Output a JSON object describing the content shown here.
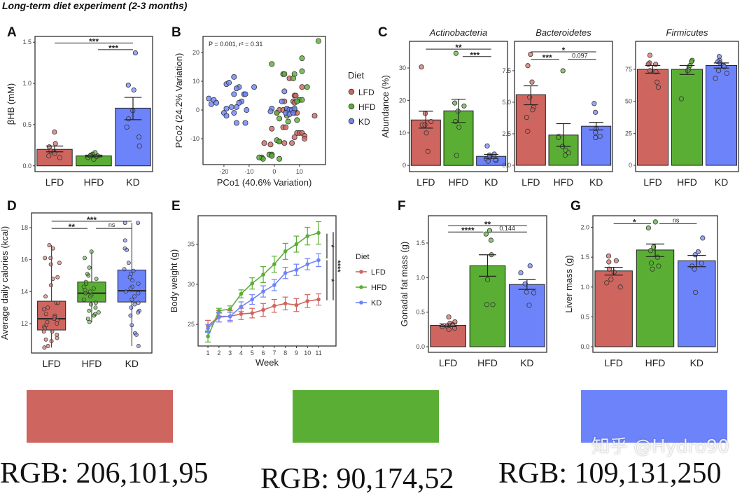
{
  "title": "Long-term diet experiment (2-3 months)",
  "colors": {
    "LFD": "#CE655F",
    "HFD": "#5AAE34",
    "KD": "#6D83FA"
  },
  "chart_data": [
    {
      "panel": "A",
      "type": "bar",
      "ylabel": "βHB (mM)",
      "xlabel": "",
      "categories": [
        "LFD",
        "HFD",
        "KD"
      ],
      "values": [
        0.2,
        0.12,
        0.7
      ],
      "sem_low": [
        0.17,
        0.11,
        0.56
      ],
      "sem_high": [
        0.24,
        0.13,
        0.83
      ],
      "points": [
        [
          0.41,
          0.27,
          0.23,
          0.18,
          0.17,
          0.15,
          0.12,
          0.1
        ],
        [
          0.16,
          0.14,
          0.13,
          0.12,
          0.11,
          0.1,
          0.08,
          0.12
        ],
        [
          1.37,
          0.98,
          0.92,
          0.67,
          0.57,
          0.47,
          0.35,
          0.24
        ]
      ],
      "ylim": [
        -0.07,
        1.57
      ],
      "yticks": [
        "0.0",
        "0.5",
        "1.0",
        "1.5"
      ],
      "significance": [
        {
          "from": 0,
          "to": 2,
          "y": 1.49,
          "label": "***"
        },
        {
          "from": 1,
          "to": 2,
          "y": 1.41,
          "label": "***"
        }
      ]
    },
    {
      "panel": "B",
      "type": "scatter",
      "annotation": "P = 0.001, r² = 0.31",
      "xlabel": "PCo1 (40.6% Variation)",
      "ylabel": "PCo2 (24.2% Variation)",
      "xlim": [
        -28.3,
        20.3
      ],
      "ylim": [
        -19.0,
        25.6
      ],
      "xticks": [
        "-20",
        "-10",
        "0",
        "10"
      ],
      "yticks": [
        "-10",
        "0",
        "10",
        "20"
      ],
      "legend_title": "Diet",
      "legend_position": "right",
      "series": [
        {
          "name": "LFD",
          "points": [
            [
              6,
              11
            ],
            [
              11,
              8
            ],
            [
              8,
              5
            ],
            [
              8.5,
              5
            ],
            [
              4,
              3
            ],
            [
              7.5,
              3
            ],
            [
              8,
              2.5
            ],
            [
              2,
              0
            ],
            [
              3.5,
              0
            ],
            [
              5,
              0
            ],
            [
              1,
              -1
            ],
            [
              8,
              -1
            ],
            [
              9,
              -1
            ],
            [
              16,
              -2
            ],
            [
              -1,
              -6.5
            ],
            [
              3.5,
              -6
            ],
            [
              4.5,
              -6
            ],
            [
              9,
              -8
            ],
            [
              10,
              -8
            ],
            [
              11,
              -8
            ],
            [
              12,
              -9
            ],
            [
              8,
              -9.5
            ],
            [
              12,
              -10
            ],
            [
              -4,
              -11.5
            ],
            [
              -1.5,
              -12
            ],
            [
              2,
              -11
            ],
            [
              4,
              -11.5
            ],
            [
              7,
              -11.5
            ]
          ]
        },
        {
          "name": "HFD",
          "points": [
            [
              17.5,
              24
            ],
            [
              11,
              18
            ],
            [
              -1,
              16
            ],
            [
              11,
              13.5
            ],
            [
              3.5,
              12.5
            ],
            [
              4,
              12.5
            ],
            [
              8,
              12.5
            ],
            [
              7.5,
              11
            ],
            [
              13,
              8
            ],
            [
              10,
              3.5
            ],
            [
              11,
              3.5
            ],
            [
              9,
              3
            ],
            [
              8,
              0
            ],
            [
              1,
              -1
            ],
            [
              2,
              -3
            ],
            [
              5,
              -2
            ],
            [
              5.5,
              -4
            ],
            [
              9,
              -3.5
            ],
            [
              1,
              -10.5
            ],
            [
              2,
              -11
            ],
            [
              -5,
              -16.5
            ],
            [
              -4.5,
              -17
            ],
            [
              -6,
              -16.5
            ],
            [
              -2,
              -15.5
            ],
            [
              -1,
              -15.5
            ],
            [
              -1,
              -16
            ],
            [
              2,
              -17
            ]
          ]
        },
        {
          "name": "KD",
          "points": [
            [
              -26,
              4
            ],
            [
              -24,
              3.5
            ],
            [
              -23,
              2.5
            ],
            [
              -25,
              2
            ],
            [
              -19,
              9
            ],
            [
              -18,
              9.5
            ],
            [
              -16,
              11.5
            ],
            [
              -14,
              8
            ],
            [
              -15,
              7.5
            ],
            [
              -8,
              8
            ],
            [
              -12,
              5.5
            ],
            [
              -11.5,
              5.5
            ],
            [
              -16,
              5.5
            ],
            [
              -13,
              3
            ],
            [
              -17,
              1
            ],
            [
              -19,
              0.5
            ],
            [
              -20,
              -1
            ],
            [
              -19,
              -2
            ],
            [
              -15,
              1
            ],
            [
              -14,
              2.5
            ],
            [
              -16,
              -1
            ],
            [
              -11,
              0
            ],
            [
              -15,
              -4.5
            ],
            [
              -11.5,
              -4.5
            ],
            [
              -1,
              0.5
            ],
            [
              -1.5,
              -0.5
            ],
            [
              4,
              6.5
            ],
            [
              3,
              3
            ],
            [
              5,
              0.5
            ],
            [
              6,
              0
            ],
            [
              7,
              0
            ],
            [
              4.5,
              -1
            ],
            [
              6,
              -1.5
            ],
            [
              8,
              0.5
            ],
            [
              7.5,
              -1
            ]
          ]
        }
      ]
    },
    {
      "panel": "C",
      "type": "bar",
      "title": "Actinobacteria",
      "ylabel": "Abundance (%)",
      "categories": [
        "LFD",
        "HFD",
        "KD"
      ],
      "values": [
        14.0,
        16.8,
        2.8
      ],
      "sem_low": [
        11.5,
        13.2,
        2.2
      ],
      "sem_high": [
        16.7,
        20.4,
        3.4
      ],
      "points": [
        [
          30.3,
          16,
          13.5,
          12.5,
          12.5,
          10,
          4.3
        ],
        [
          34.5,
          19.2,
          18.3,
          16.7,
          13.5,
          11.8,
          3.1
        ],
        [
          6,
          3.5,
          3.2,
          2.5,
          2,
          1.5,
          1.3,
          1.8
        ]
      ],
      "ylim": [
        -1.9,
        38.2
      ],
      "yticks": [
        "0",
        "10",
        "20",
        "30"
      ],
      "significance": [
        {
          "from": 0,
          "to": 2,
          "y": 35.8,
          "label": "**"
        },
        {
          "from": 1,
          "to": 2,
          "y": 33.5,
          "label": "***"
        }
      ]
    },
    {
      "panel": "",
      "type": "bar",
      "title": "Bacteroidetes",
      "ylabel": "",
      "categories": [
        "LFD",
        "HFD",
        "KD"
      ],
      "values": [
        5.6,
        2.4,
        3.1
      ],
      "sem_low": [
        4.8,
        1.5,
        2.8
      ],
      "sem_high": [
        6.3,
        3.3,
        3.4
      ],
      "points": [
        [
          8.8,
          7.9,
          6.6,
          5.4,
          4.6,
          4.4,
          3.8,
          2.7
        ],
        [
          7.5,
          2.3,
          2.2,
          1.5,
          1.2,
          0.8,
          1.0
        ],
        [
          4.9,
          4.2,
          2.9,
          2.6,
          2.3,
          2.2,
          2.2
        ]
      ],
      "ylim": [
        -0.5,
        9.83
      ],
      "yticks": [
        "0.0",
        "2.5",
        "5.0",
        "7.5"
      ],
      "significance": [
        {
          "from": 0,
          "to": 2,
          "y": 9.0,
          "label": "*"
        },
        {
          "from": 0,
          "to": 1,
          "y": 8.4,
          "label": "***"
        },
        {
          "from": 1,
          "to": 2,
          "y": 8.4,
          "label": "0.097"
        }
      ]
    },
    {
      "panel": "",
      "type": "bar",
      "title": "Firmicutes",
      "ylabel": "",
      "categories": [
        "LFD",
        "HFD",
        "KD"
      ],
      "values": [
        75,
        75,
        78
      ],
      "sem_low": [
        72,
        71,
        76
      ],
      "sem_high": [
        78,
        78,
        80
      ],
      "points": [
        [
          86,
          80,
          79,
          79,
          74,
          73,
          65,
          61
        ],
        [
          82,
          81,
          78,
          75,
          74,
          52
        ],
        [
          85,
          82,
          81,
          80,
          78,
          77,
          74,
          72,
          68
        ]
      ],
      "ylim": [
        -4.9,
        96.9
      ],
      "yticks": [
        "0",
        "25",
        "50",
        "75"
      ],
      "significance": []
    },
    {
      "panel": "D",
      "type": "box",
      "ylabel": "Average daily calories (kcal)",
      "categories": [
        "LFD",
        "HFD",
        "KD"
      ],
      "q1": [
        11.6,
        13.35,
        13.35
      ],
      "median": [
        12.3,
        13.9,
        14.05
      ],
      "q3": [
        13.4,
        14.6,
        15.35
      ],
      "whisker_low": [
        10.5,
        12.1,
        10.6
      ],
      "whisker_high": [
        16.9,
        16.5,
        18.3
      ],
      "points": [
        [
          16.9,
          16.7,
          16.1,
          16.1,
          15.8,
          15.7,
          14.9,
          14.8,
          14.4,
          13.7,
          13.3,
          13.3,
          13.0,
          12.9,
          12.6,
          12.5,
          12.4,
          12.3,
          12.2,
          12.1,
          12.0,
          11.9,
          11.8,
          11.7,
          11.5,
          11.5,
          11.3,
          11.1,
          11.0,
          10.9,
          10.5,
          10.6
        ],
        [
          16.5,
          16.1,
          15.5,
          15.1,
          15.0,
          14.8,
          14.6,
          14.5,
          14.3,
          14.2,
          14.1,
          14.0,
          13.9,
          13.8,
          13.7,
          13.5,
          13.3,
          13.2,
          13.0,
          12.8,
          12.7,
          12.6,
          12.5,
          12.3,
          12.1
        ],
        [
          18.3,
          18.3,
          17.2,
          16.7,
          16.6,
          15.8,
          15.4,
          15.3,
          15.1,
          14.9,
          14.7,
          14.5,
          14.3,
          14.2,
          14.0,
          13.9,
          13.7,
          13.5,
          13.3,
          13.2,
          13.0,
          12.8,
          12.7,
          12.5,
          11.9,
          11.4,
          11.3,
          10.6
        ]
      ],
      "ylim": [
        10.16,
        18.92
      ],
      "yticks": [
        "12",
        "14",
        "16",
        "18"
      ],
      "significance": [
        {
          "from": 0,
          "to": 2,
          "y": 18.4,
          "label": "***"
        },
        {
          "from": 0,
          "to": 1,
          "y": 17.95,
          "label": "**"
        },
        {
          "from": 1,
          "to": 2,
          "y": 17.95,
          "label": "ns"
        }
      ]
    },
    {
      "panel": "E",
      "type": "line",
      "xlabel": "Week",
      "ylabel": "Body weight (g)",
      "x": [
        1,
        2,
        3,
        4,
        5,
        6,
        7,
        8,
        9,
        10,
        11
      ],
      "xlim": [
        0.11,
        12.58
      ],
      "ylim": [
        22.3,
        38.54
      ],
      "yticks": [
        "25",
        "30",
        "35"
      ],
      "legend_title": "Diet",
      "legend_position": "right",
      "series": [
        {
          "name": "LFD",
          "values": [
            24.8,
            26.0,
            26.0,
            26.3,
            26.4,
            26.8,
            27.3,
            27.6,
            27.4,
            27.9,
            28.1
          ],
          "err": [
            0.7,
            0.7,
            0.7,
            0.7,
            0.6,
            0.8,
            0.8,
            0.8,
            0.8,
            0.8,
            0.7
          ]
        },
        {
          "name": "HFD",
          "values": [
            23.5,
            26.7,
            26.9,
            28.8,
            30.1,
            31.2,
            32.5,
            34.1,
            35.0,
            36.0,
            36.4
          ],
          "err": [
            0.7,
            0.3,
            0.4,
            0.5,
            0.7,
            1.0,
            1.0,
            1.0,
            1.0,
            1.1,
            1.4
          ]
        },
        {
          "name": "KD",
          "values": [
            24.5,
            25.9,
            26.0,
            27.2,
            28.1,
            29.1,
            29.9,
            31.4,
            31.8,
            32.5,
            33.0
          ],
          "err": [
            0.5,
            0.6,
            0.5,
            0.6,
            0.6,
            0.7,
            0.7,
            0.7,
            0.7,
            0.7,
            0.8
          ]
        }
      ],
      "significance": [
        {
          "y1": 33.2,
          "y2": 36.3,
          "label": "*",
          "col": 0
        },
        {
          "y1": 28.0,
          "y2": 33.0,
          "label": "*",
          "col": 0
        },
        {
          "y1": 28.0,
          "y2": 36.5,
          "label": "****",
          "col": 1
        }
      ]
    },
    {
      "panel": "F",
      "type": "bar",
      "ylabel": "Gonadal fat mass (g)",
      "categories": [
        "LFD",
        "HFD",
        "KD"
      ],
      "values": [
        0.31,
        1.17,
        0.9
      ],
      "sem_low": [
        0.29,
        1.02,
        0.83
      ],
      "sem_high": [
        0.33,
        1.33,
        0.97
      ],
      "points": [
        [
          0.43,
          0.36,
          0.34,
          0.32,
          0.3,
          0.29,
          0.27,
          0.25
        ],
        [
          1.68,
          1.63,
          1.54,
          1.33,
          0.97,
          0.61,
          0.61
        ],
        [
          1.17,
          1.07,
          0.91,
          0.79,
          0.78,
          0.6
        ]
      ],
      "ylim": [
        -0.081,
        1.895
      ],
      "yticks": [
        "0.0",
        "0.5",
        "1.0",
        "1.5"
      ],
      "significance": [
        {
          "from": 0,
          "to": 2,
          "y": 1.75,
          "label": "**"
        },
        {
          "from": 0,
          "to": 1,
          "y": 1.66,
          "label": "****"
        },
        {
          "from": 1,
          "to": 2,
          "y": 1.66,
          "label": "0.144"
        }
      ]
    },
    {
      "panel": "G",
      "type": "bar",
      "ylabel": "Liver mass (g)",
      "categories": [
        "LFD",
        "HFD",
        "KD"
      ],
      "values": [
        1.27,
        1.62,
        1.44
      ],
      "sem_low": [
        1.2,
        1.51,
        1.34
      ],
      "sem_high": [
        1.33,
        1.72,
        1.53
      ],
      "points": [
        [
          1.52,
          1.44,
          1.42,
          1.3,
          1.25,
          1.13,
          1.07,
          1.0
        ],
        [
          2.09,
          1.99,
          1.67,
          1.61,
          1.5,
          1.4,
          1.35,
          1.3
        ],
        [
          1.82,
          1.59,
          1.54,
          1.4,
          1.35,
          1.3,
          0.91
        ]
      ],
      "ylim": [
        -0.094,
        2.194
      ],
      "yticks": [
        "0.0",
        "0.5",
        "1.0",
        "1.5",
        "2.0"
      ],
      "significance": [
        {
          "from": 0,
          "to": 1,
          "y": 2.06,
          "label": "*"
        },
        {
          "from": 1,
          "to": 2,
          "y": 2.06,
          "label": "ns"
        }
      ]
    }
  ],
  "swatches": [
    {
      "label": "RGB: 206,101,95",
      "color": "#CE655F"
    },
    {
      "label": "RGB: 90,174,52",
      "color": "#5AAE34"
    },
    {
      "label": "RGB: 109,131,250",
      "color": "#6D83FA"
    }
  ],
  "watermark": "知乎 @Hydro90"
}
